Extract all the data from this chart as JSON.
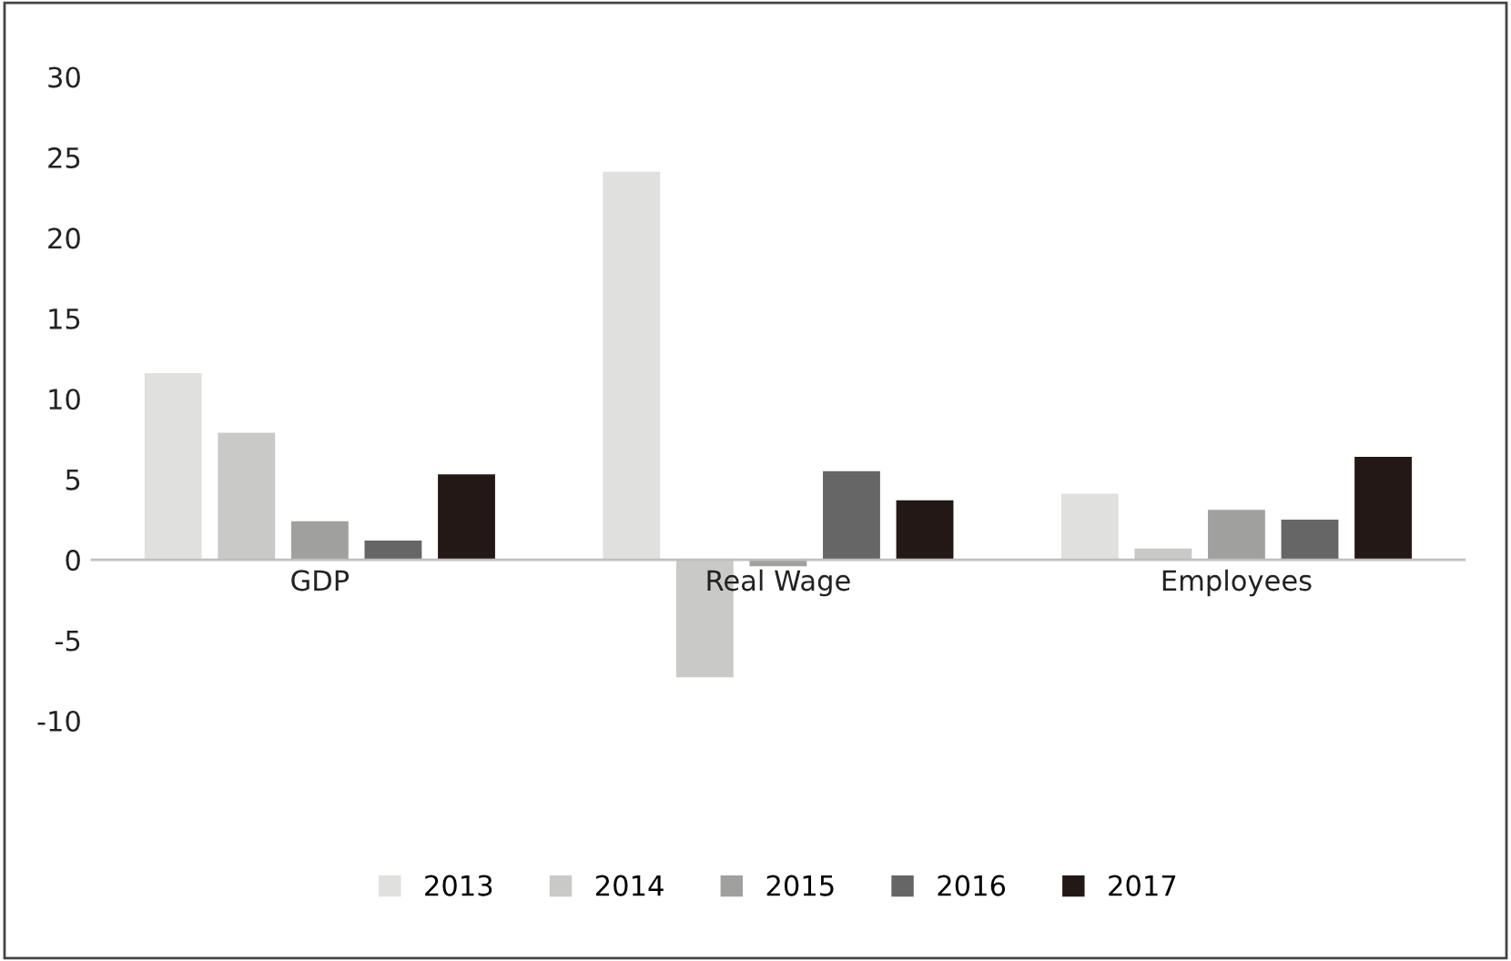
{
  "chart_data": {
    "type": "bar",
    "categories": [
      "GDP",
      "Real Wage",
      "Employees"
    ],
    "series": [
      {
        "name": "2013",
        "color": "#e0e0df",
        "values": [
          11.6,
          24.1,
          4.1
        ]
      },
      {
        "name": "2014",
        "color": "#c9c9c8",
        "values": [
          7.9,
          -7.3,
          0.7
        ]
      },
      {
        "name": "2015",
        "color": "#a0a09f",
        "values": [
          2.4,
          -0.4,
          3.1
        ]
      },
      {
        "name": "2016",
        "color": "#666666",
        "values": [
          1.2,
          5.5,
          2.5
        ]
      },
      {
        "name": "2017",
        "color": "#231815",
        "values": [
          5.3,
          3.7,
          6.4
        ]
      }
    ],
    "ylim": [
      -10,
      30
    ],
    "yticks": [
      -10,
      -5,
      0,
      5,
      10,
      15,
      20,
      25,
      30
    ],
    "grid": false,
    "legend": "bottom"
  }
}
